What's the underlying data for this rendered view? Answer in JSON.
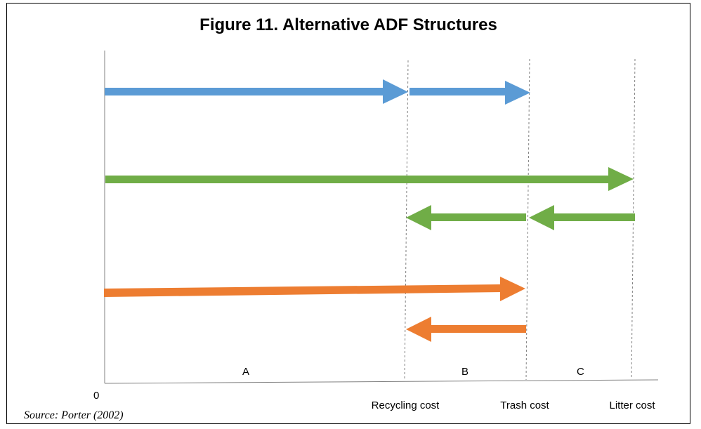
{
  "title": "Figure 11. Alternative ADF Structures",
  "source": "Source: Porter (2002)",
  "axis": {
    "origin_label": "0",
    "ticks": [
      "Recycling cost",
      "Trash cost",
      "Litter cost"
    ]
  },
  "regions": [
    "A",
    "B",
    "C"
  ],
  "colors": {
    "blue": "#5b9bd5",
    "green": "#70ad47",
    "orange": "#ed7d31",
    "axis": "#808080",
    "divider": "#808080"
  }
}
